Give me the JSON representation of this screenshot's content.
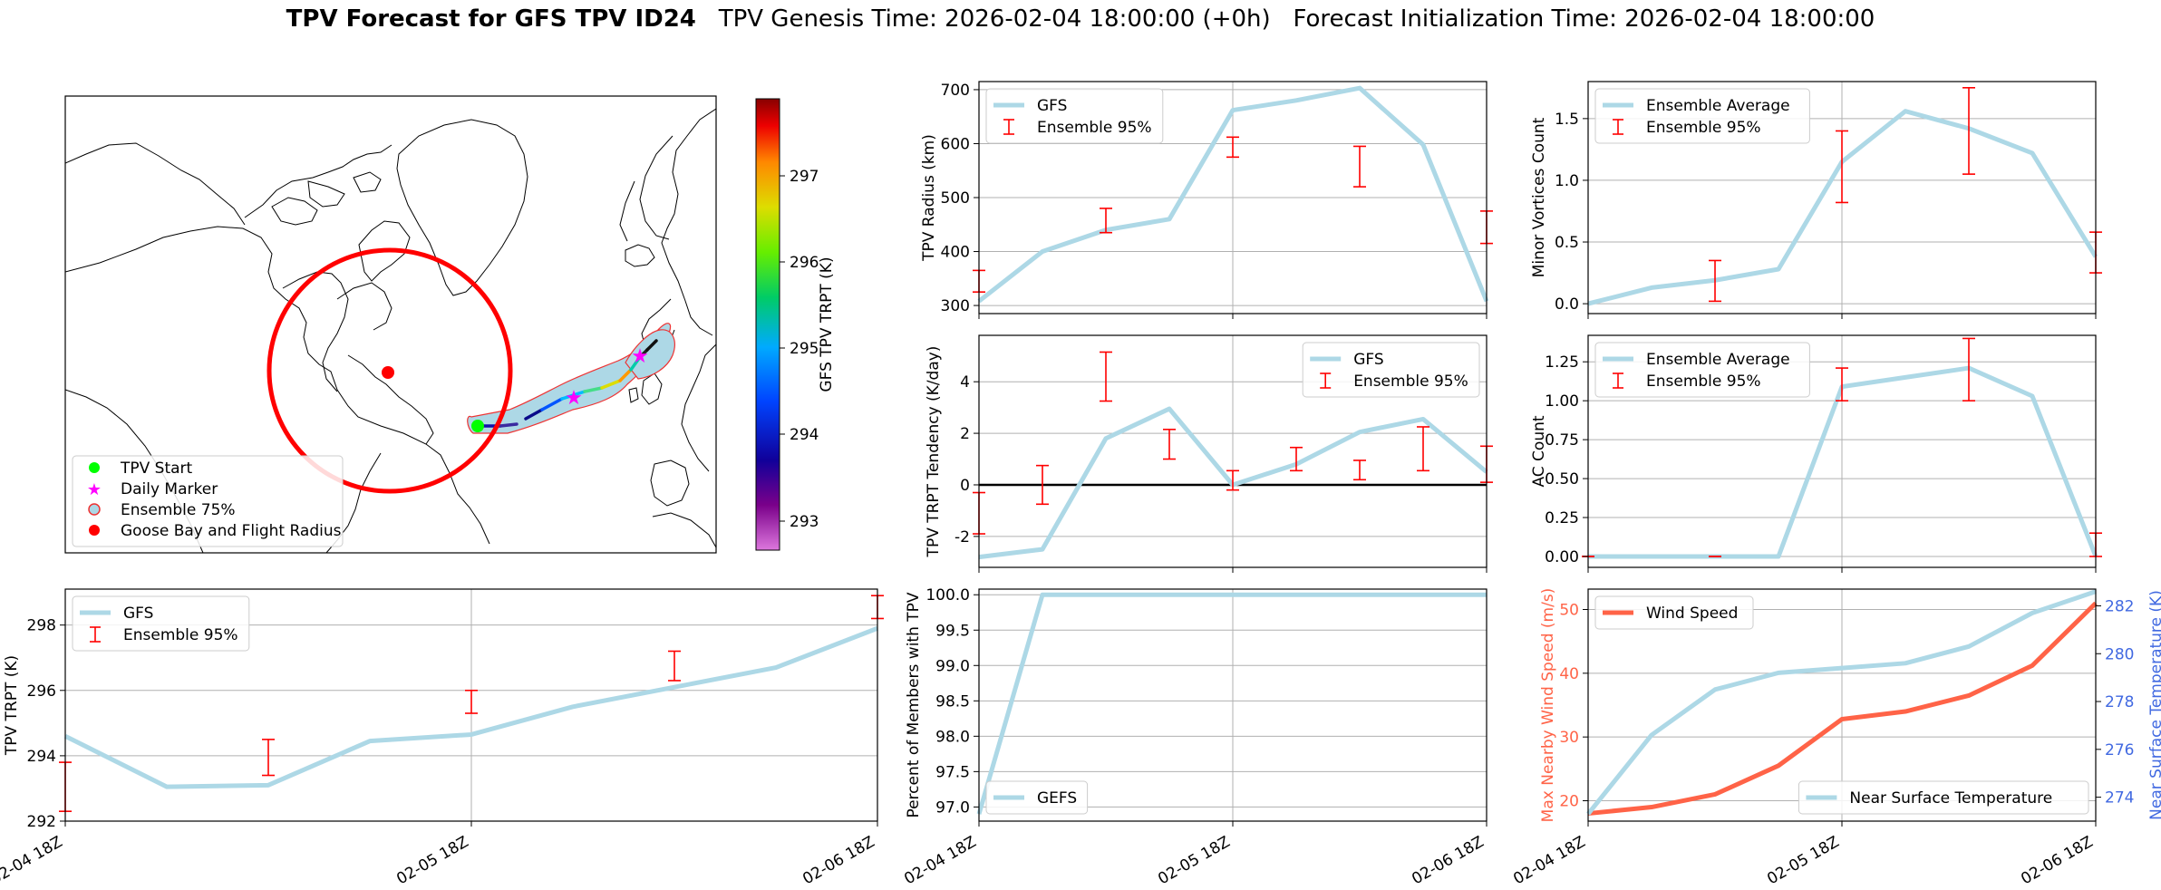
{
  "header": {
    "title_bold": "TPV Forecast for GFS TPV ID24",
    "genesis": "TPV Genesis Time: 2026-02-04 18:00:00 (+0h)",
    "init": "Forecast Initialization Time: 2026-02-04 18:00:00"
  },
  "map": {
    "colorbar_label": "GFS TPV TRPT (K)",
    "colorbar_ticks": [
      "293",
      "294",
      "295",
      "296",
      "297"
    ],
    "legend": [
      "TPV Start",
      "Daily Marker",
      "Ensemble 75%",
      "Goose Bay and Flight Radius"
    ],
    "colors": {
      "start": "#00ff00",
      "marker": "#ff00ff",
      "envelope": "#add8e6",
      "goose_bay": "#ff0000"
    }
  },
  "chart_data": [
    {
      "id": "radius",
      "type": "line",
      "x_labels": [
        "02-04 18Z",
        "02-05 18Z",
        "02-06 18Z"
      ],
      "ylabel": "TPV Radius (km)",
      "ylim": [
        285,
        715
      ],
      "yticks": [
        300,
        400,
        500,
        600,
        700
      ],
      "series": [
        {
          "name": "GFS",
          "values": [
            308,
            400,
            440,
            460,
            662,
            680,
            703,
            598,
            308
          ],
          "color": "#add8e6"
        }
      ],
      "errorbars": {
        "name": "Ensemble 95%",
        "items": [
          {
            "x": 0,
            "lo": 325,
            "hi": 365
          },
          {
            "x": 2,
            "lo": 435,
            "hi": 480
          },
          {
            "x": 4,
            "lo": 575,
            "hi": 612
          },
          {
            "x": 6,
            "lo": 520,
            "hi": 595
          },
          {
            "x": 8,
            "lo": 415,
            "hi": 475
          }
        ]
      },
      "legend": "top-left",
      "grid": true
    },
    {
      "id": "minor",
      "type": "line",
      "x_labels": [
        "02-04 18Z",
        "02-05 18Z",
        "02-06 18Z"
      ],
      "ylabel": "Minor Vortices Count",
      "ylim": [
        -0.08,
        1.8
      ],
      "yticks": [
        0.0,
        0.5,
        1.0,
        1.5
      ],
      "ytick_labels": [
        "0.0",
        "0.5",
        "1.0",
        "1.5"
      ],
      "series": [
        {
          "name": "Ensemble Average",
          "values": [
            0.0,
            0.13,
            0.19,
            0.28,
            1.15,
            1.56,
            1.42,
            1.22,
            0.38
          ],
          "color": "#add8e6"
        }
      ],
      "errorbars": {
        "name": "Ensemble 95%",
        "items": [
          {
            "x": 2,
            "lo": 0.02,
            "hi": 0.35
          },
          {
            "x": 4,
            "lo": 0.82,
            "hi": 1.4
          },
          {
            "x": 6,
            "lo": 1.05,
            "hi": 1.75
          },
          {
            "x": 8,
            "lo": 0.25,
            "hi": 0.58
          }
        ]
      },
      "legend": "top-left",
      "grid": true
    },
    {
      "id": "tendency",
      "type": "line",
      "x_labels": [
        "02-04 18Z",
        "02-05 18Z",
        "02-06 18Z"
      ],
      "ylabel": "TPV TRPT Tendency (K/day)",
      "ylim": [
        -3.2,
        5.8
      ],
      "yticks": [
        -2,
        0,
        2,
        4
      ],
      "zero_line": true,
      "series": [
        {
          "name": "GFS",
          "values": [
            -2.8,
            -2.5,
            1.8,
            2.95,
            0.0,
            0.8,
            2.05,
            2.55,
            0.5
          ],
          "color": "#add8e6"
        }
      ],
      "errorbars": {
        "name": "Ensemble 95%",
        "items": [
          {
            "x": 0,
            "lo": -1.9,
            "hi": -0.3
          },
          {
            "x": 1,
            "lo": -0.75,
            "hi": 0.75
          },
          {
            "x": 2,
            "lo": 3.25,
            "hi": 5.15
          },
          {
            "x": 3,
            "lo": 1.0,
            "hi": 2.15
          },
          {
            "x": 4,
            "lo": -0.2,
            "hi": 0.55
          },
          {
            "x": 5,
            "lo": 0.55,
            "hi": 1.45
          },
          {
            "x": 6,
            "lo": 0.2,
            "hi": 0.95
          },
          {
            "x": 7,
            "lo": 0.55,
            "hi": 2.25
          },
          {
            "x": 8,
            "lo": 0.1,
            "hi": 1.5
          }
        ]
      },
      "legend": "top-right",
      "grid": true
    },
    {
      "id": "ac",
      "type": "line",
      "x_labels": [
        "02-04 18Z",
        "02-05 18Z",
        "02-06 18Z"
      ],
      "ylabel": "AC Count",
      "ylim": [
        -0.07,
        1.42
      ],
      "yticks": [
        0.0,
        0.25,
        0.5,
        0.75,
        1.0,
        1.25
      ],
      "ytick_labels": [
        "0.00",
        "0.25",
        "0.50",
        "0.75",
        "1.00",
        "1.25"
      ],
      "series": [
        {
          "name": "Ensemble Average",
          "values": [
            0.0,
            0.0,
            0.0,
            0.0,
            1.09,
            1.15,
            1.21,
            1.03,
            0.0
          ],
          "color": "#add8e6"
        }
      ],
      "errorbars": {
        "name": "Ensemble 95%",
        "items": [
          {
            "x": 0,
            "lo": 0.0,
            "hi": 0.0
          },
          {
            "x": 2,
            "lo": 0.0,
            "hi": 0.0
          },
          {
            "x": 4,
            "lo": 1.0,
            "hi": 1.21
          },
          {
            "x": 6,
            "lo": 1.0,
            "hi": 1.4
          },
          {
            "x": 8,
            "lo": 0.0,
            "hi": 0.15
          }
        ]
      },
      "legend": "top-left",
      "grid": true
    },
    {
      "id": "trpt",
      "type": "line",
      "x_labels": [
        "02-04 18Z",
        "02-05 18Z",
        "02-06 18Z"
      ],
      "ylabel": "TPV TRPT (K)",
      "ylim": [
        292,
        299.1
      ],
      "yticks": [
        292,
        294,
        296,
        298
      ],
      "series": [
        {
          "name": "GFS",
          "values": [
            294.6,
            293.05,
            293.1,
            294.45,
            294.65,
            295.5,
            296.1,
            296.7,
            297.9
          ],
          "color": "#add8e6"
        }
      ],
      "errorbars": {
        "name": "Ensemble 95%",
        "items": [
          {
            "x": 0,
            "lo": 292.3,
            "hi": 293.8
          },
          {
            "x": 2,
            "lo": 293.4,
            "hi": 294.5
          },
          {
            "x": 4,
            "lo": 295.3,
            "hi": 296.0
          },
          {
            "x": 6,
            "lo": 296.3,
            "hi": 297.2
          },
          {
            "x": 8,
            "lo": 298.2,
            "hi": 298.9
          }
        ]
      },
      "legend": "top-left",
      "grid": true
    },
    {
      "id": "percent",
      "type": "line",
      "x_labels": [
        "02-04 18Z",
        "02-05 18Z",
        "02-06 18Z"
      ],
      "ylabel": "Percent of Members with TPV",
      "ylim": [
        96.8,
        100.08
      ],
      "yticks": [
        97.0,
        97.5,
        98.0,
        98.5,
        99.0,
        99.5,
        100.0
      ],
      "ytick_labels": [
        "97.0",
        "97.5",
        "98.0",
        "98.5",
        "99.0",
        "99.5",
        "100.0"
      ],
      "series": [
        {
          "name": "GEFS",
          "values": [
            96.9,
            100,
            100,
            100,
            100,
            100,
            100,
            100,
            100
          ],
          "color": "#add8e6"
        }
      ],
      "legend": "bottom-left",
      "grid": true
    },
    {
      "id": "wind",
      "type": "line",
      "x_labels": [
        "02-04 18Z",
        "02-05 18Z",
        "02-06 18Z"
      ],
      "ylabel": "Max Nearby Wind Speed (m/s)",
      "ylabel_right": "Near Surface Temperature (K)",
      "ylim": [
        16.8,
        53.2
      ],
      "yticks": [
        20,
        30,
        40,
        50
      ],
      "ylim_right": [
        273,
        282.7
      ],
      "yticks_right": [
        274,
        276,
        278,
        280,
        282
      ],
      "series": [
        {
          "name": "Wind Speed",
          "values": [
            18,
            19,
            21,
            25.5,
            32.8,
            34,
            36.5,
            41.2,
            51
          ],
          "color": "#ff6347",
          "axis": "left"
        },
        {
          "name": "Near Surface Temperature",
          "values": [
            273.3,
            276.6,
            278.5,
            279.2,
            279.4,
            279.6,
            280.3,
            281.7,
            282.6
          ],
          "color": "#add8e6",
          "axis": "right"
        }
      ],
      "legend": "top-left / bottom-right",
      "grid": true
    }
  ]
}
